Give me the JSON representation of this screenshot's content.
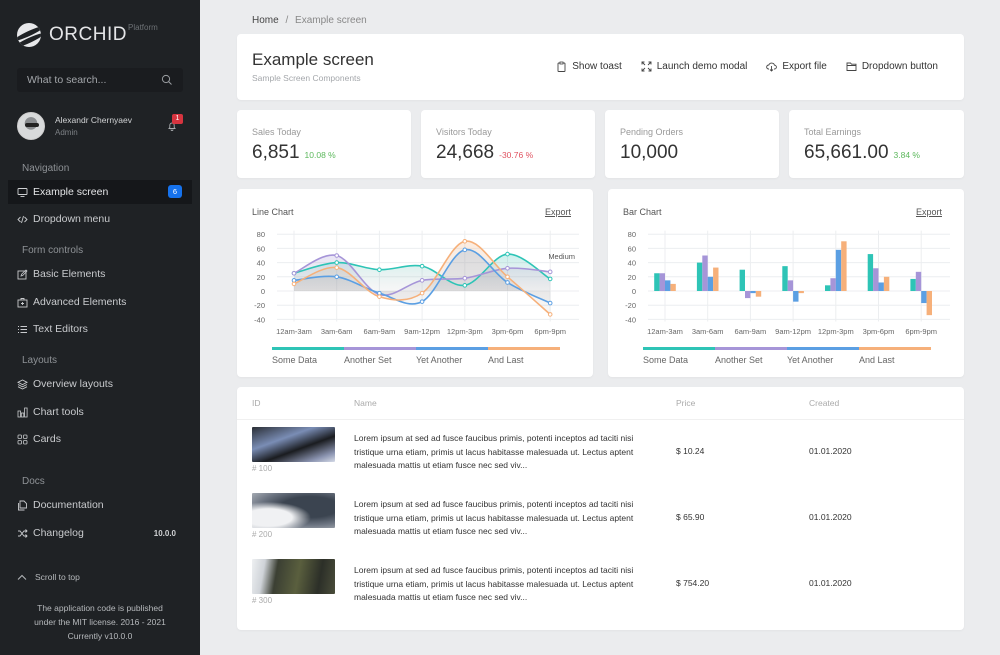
{
  "sidebar": {
    "brand": {
      "name": "ORCHID",
      "sub": "Platform"
    },
    "search": {
      "placeholder": "What to search..."
    },
    "user": {
      "name": "Alexandr Chernyaev",
      "role": "Admin",
      "notifications": "1"
    },
    "sections": {
      "navigation": "Navigation",
      "form_controls": "Form controls",
      "layouts": "Layouts",
      "docs": "Docs"
    },
    "items": [
      {
        "label": "Example screen",
        "icon": "monitor-icon",
        "badge": "6",
        "active": true
      },
      {
        "label": "Dropdown menu",
        "icon": "code-icon"
      },
      {
        "label": "Basic Elements",
        "icon": "edit-icon"
      },
      {
        "label": "Advanced Elements",
        "icon": "briefcase-icon"
      },
      {
        "label": "Text Editors",
        "icon": "list-icon"
      },
      {
        "label": "Overview layouts",
        "icon": "layers-icon"
      },
      {
        "label": "Chart tools",
        "icon": "bar-chart-icon"
      },
      {
        "label": "Cards",
        "icon": "grid-icon"
      },
      {
        "label": "Documentation",
        "icon": "docs-icon"
      },
      {
        "label": "Changelog",
        "icon": "shuffle-icon",
        "version": "10.0.0"
      }
    ],
    "scroll_top": "Scroll to top",
    "footer": {
      "line1": "The application code is published",
      "line2": "under the MIT license. 2016 - 2021",
      "line3": "Currently v10.0.0"
    }
  },
  "breadcrumb": {
    "home": "Home",
    "separator": "/",
    "current": "Example screen"
  },
  "header": {
    "title": "Example screen",
    "subtitle": "Sample Screen Components",
    "actions": [
      {
        "label": "Show toast",
        "icon": "clipboard-icon"
      },
      {
        "label": "Launch demo modal",
        "icon": "fullscreen-icon"
      },
      {
        "label": "Export file",
        "icon": "cloud-download-icon"
      },
      {
        "label": "Dropdown button",
        "icon": "folder-icon"
      }
    ]
  },
  "stats": [
    {
      "label": "Sales Today",
      "value": "6,851",
      "delta": "10.08 %",
      "trend": "up"
    },
    {
      "label": "Visitors Today",
      "value": "24,668",
      "delta": "-30.76 %",
      "trend": "down"
    },
    {
      "label": "Pending Orders",
      "value": "10,000",
      "delta": "",
      "trend": ""
    },
    {
      "label": "Total Earnings",
      "value": "65,661.00",
      "delta": "3.84 %",
      "trend": "up"
    }
  ],
  "charts": {
    "line": {
      "title": "Line Chart",
      "export": "Export",
      "annotation": "Medium"
    },
    "bar": {
      "title": "Bar Chart",
      "export": "Export"
    },
    "legend": [
      "Some Data",
      "Another Set",
      "Yet Another",
      "And Last"
    ],
    "colors": [
      "#2ec4b6",
      "#a695d8",
      "#5b9fe3",
      "#f6b07a"
    ]
  },
  "chart_data": [
    {
      "type": "line",
      "title": "Line Chart",
      "categories": [
        "12am-3am",
        "3am-6am",
        "6am-9am",
        "9am-12pm",
        "12pm-3pm",
        "3pm-6pm",
        "6pm-9pm"
      ],
      "series": [
        {
          "name": "Some Data",
          "values": [
            25,
            40,
            30,
            35,
            8,
            52,
            17
          ]
        },
        {
          "name": "Another Set",
          "values": [
            25,
            50,
            -5,
            15,
            18,
            32,
            27
          ]
        },
        {
          "name": "Yet Another",
          "values": [
            15,
            20,
            -3,
            -15,
            58,
            12,
            -17
          ]
        },
        {
          "name": "And Last",
          "values": [
            10,
            33,
            -8,
            -3,
            70,
            20,
            -33
          ]
        }
      ],
      "yticks": [
        80,
        60,
        40,
        20,
        0,
        -20,
        -40
      ],
      "ylim": [
        -40,
        80
      ],
      "annotation": "Medium",
      "legend_position": "bottom",
      "grid": true
    },
    {
      "type": "bar",
      "title": "Bar Chart",
      "categories": [
        "12am-3am",
        "3am-6am",
        "6am-9am",
        "9am-12pm",
        "12pm-3pm",
        "3pm-6pm",
        "6pm-9pm"
      ],
      "series": [
        {
          "name": "Some Data",
          "values": [
            25,
            40,
            30,
            35,
            8,
            52,
            17
          ]
        },
        {
          "name": "Another Set",
          "values": [
            25,
            50,
            -10,
            15,
            18,
            32,
            27
          ]
        },
        {
          "name": "Yet Another",
          "values": [
            15,
            20,
            -3,
            -15,
            58,
            12,
            -17
          ]
        },
        {
          "name": "And Last",
          "values": [
            10,
            33,
            -8,
            -3,
            70,
            20,
            -34
          ]
        }
      ],
      "yticks": [
        80,
        60,
        40,
        20,
        0,
        -20,
        -40
      ],
      "ylim": [
        -40,
        80
      ],
      "legend_position": "bottom",
      "grid": true
    }
  ],
  "table": {
    "columns": [
      "ID",
      "Name",
      "Price",
      "Created"
    ],
    "rows": [
      {
        "id": "# 100",
        "name": "Lorem ipsum at sed ad fusce faucibus primis, potenti inceptos ad taciti nisi tristique urna etiam, primis ut lacus habitasse malesuada ut. Lectus aptent malesuada mattis ut etiam fusce nec sed viv...",
        "price": "$ 10.24",
        "created": "01.01.2020"
      },
      {
        "id": "# 200",
        "name": "Lorem ipsum at sed ad fusce faucibus primis, potenti inceptos ad taciti nisi tristique urna etiam, primis ut lacus habitasse malesuada ut. Lectus aptent malesuada mattis ut etiam fusce nec sed viv...",
        "price": "$ 65.90",
        "created": "01.01.2020"
      },
      {
        "id": "# 300",
        "name": "Lorem ipsum at sed ad fusce faucibus primis, potenti inceptos ad taciti nisi tristique urna etiam, primis ut lacus habitasse malesuada ut. Lectus aptent malesuada mattis ut etiam fusce nec sed viv...",
        "price": "$ 754.20",
        "created": "01.01.2020"
      }
    ]
  }
}
